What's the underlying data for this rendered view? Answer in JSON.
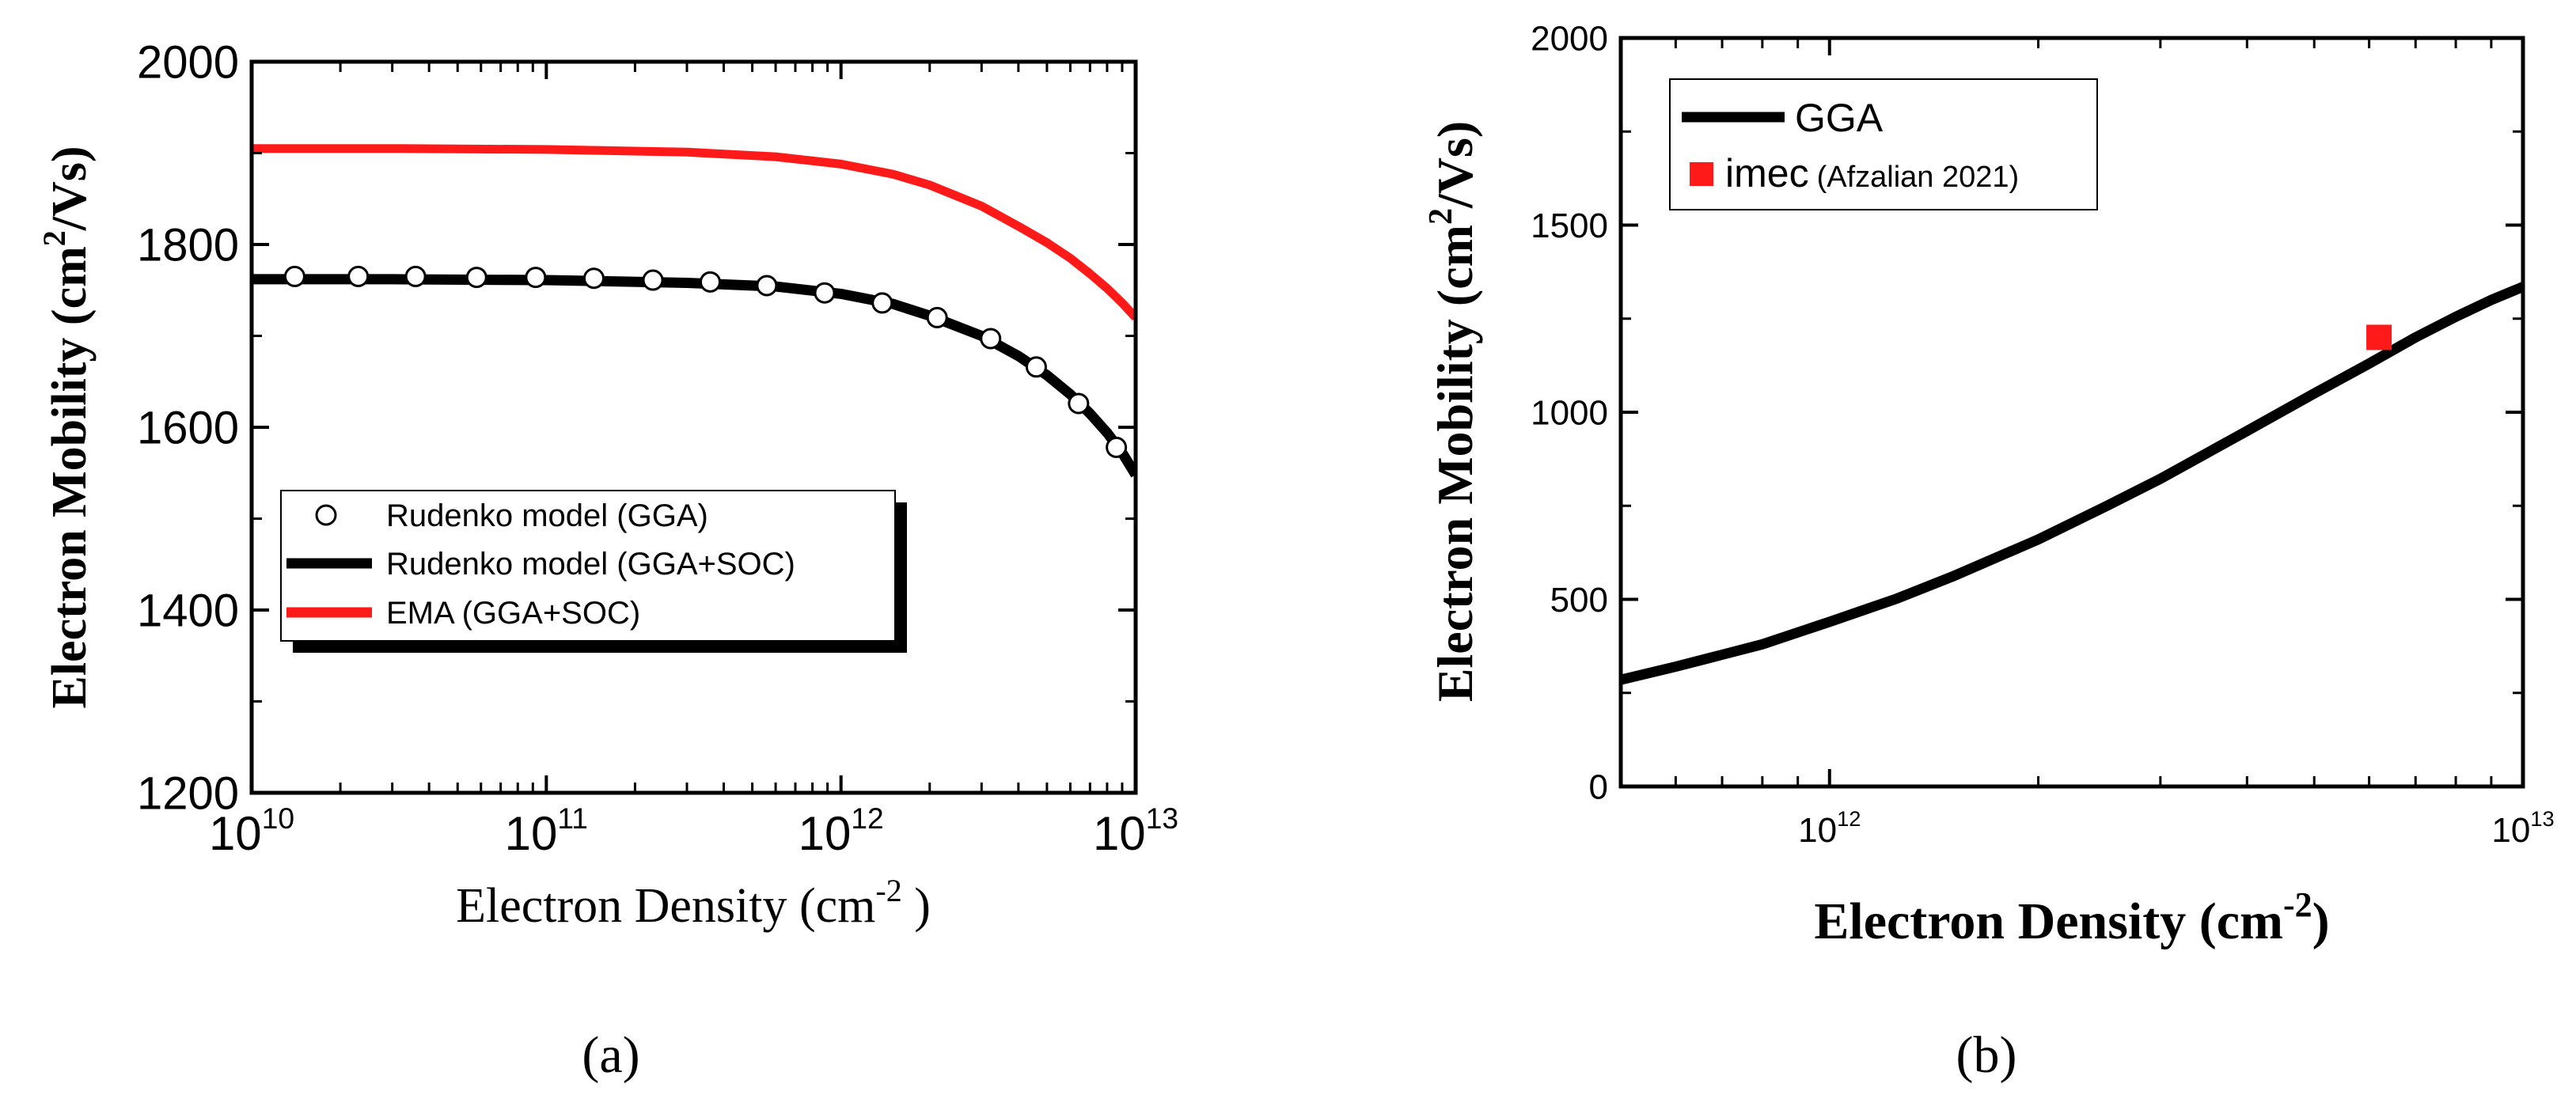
{
  "colors": {
    "black": "#000000",
    "red": "#ff1a1a",
    "marker_fill": "#ffffff"
  },
  "chart_data": [
    {
      "panel": "a",
      "panel_label": "(a)",
      "type": "line",
      "xscale": "log",
      "xlim": [
        10000000000.0,
        10000000000000.0
      ],
      "ylim": [
        1200,
        2000
      ],
      "xlabel": "Electron Density (cm",
      "xlabel_sup": "-2",
      "xlabel_tail": " )",
      "ylabel": "Electron Mobility (cm",
      "ylabel_sup": "2",
      "ylabel_tail": "/Vs)",
      "xticks": [
        {
          "value": 10000000000.0,
          "base": "10",
          "exp": "10"
        },
        {
          "value": 100000000000.0,
          "base": "10",
          "exp": "11"
        },
        {
          "value": 1000000000000.0,
          "base": "10",
          "exp": "12"
        },
        {
          "value": 10000000000000.0,
          "base": "10",
          "exp": "13"
        }
      ],
      "yticks": [
        {
          "value": 1200,
          "label": "1200"
        },
        {
          "value": 1400,
          "label": "1400"
        },
        {
          "value": 1600,
          "label": "1600"
        },
        {
          "value": 1800,
          "label": "1800"
        },
        {
          "value": 2000,
          "label": "2000"
        }
      ],
      "legend_position": "lower-left",
      "series": [
        {
          "name": "Rudenko model (GGA)",
          "style": "markers",
          "x": [
            14000000000.0,
            23000000000.0,
            36000000000.0,
            58000000000.0,
            92000000000.0,
            145000000000.0,
            230000000000.0,
            360000000000.0,
            560000000000.0,
            880000000000.0,
            1380000000000.0,
            2120000000000.0,
            3220000000000.0,
            4600000000000.0,
            6400000000000.0,
            8600000000000.0
          ],
          "y": [
            1765,
            1765,
            1765,
            1764,
            1764,
            1763,
            1761,
            1759,
            1755,
            1747,
            1736,
            1720,
            1697,
            1666,
            1626,
            1578
          ]
        },
        {
          "name": "Rudenko model (GGA+SOC)",
          "style": "line",
          "color": "#000000",
          "x": [
            10000000000.0,
            30000000000.0,
            100000000000.0,
            300000000000.0,
            600000000000.0,
            1000000000000.0,
            1500000000000.0,
            2000000000000.0,
            3000000000000.0,
            4000000000000.0,
            5000000000000.0,
            6000000000000.0,
            7000000000000.0,
            8000000000000.0,
            9000000000000.0,
            10000000000000.0
          ],
          "y": [
            1762,
            1762,
            1761,
            1758,
            1754,
            1746,
            1735,
            1722,
            1700,
            1678,
            1657,
            1636,
            1615,
            1594,
            1572,
            1548
          ]
        },
        {
          "name": "EMA (GGA+SOC)",
          "style": "line",
          "color": "#ff1a1a",
          "x": [
            10000000000.0,
            30000000000.0,
            100000000000.0,
            300000000000.0,
            600000000000.0,
            1000000000000.0,
            1500000000000.0,
            2000000000000.0,
            3000000000000.0,
            4000000000000.0,
            5000000000000.0,
            6000000000000.0,
            7000000000000.0,
            8000000000000.0,
            9000000000000.0,
            10000000000000.0
          ],
          "y": [
            1905,
            1905,
            1904,
            1901,
            1896,
            1888,
            1877,
            1865,
            1842,
            1820,
            1802,
            1785,
            1768,
            1752,
            1736,
            1720
          ]
        }
      ]
    },
    {
      "panel": "b",
      "panel_label": "(b)",
      "type": "line",
      "xscale": "log",
      "xlim": [
        500000000000.0,
        10000000000000.0
      ],
      "ylim": [
        0,
        2000
      ],
      "xlabel": "Electron Density (cm",
      "xlabel_sup": "-2",
      "xlabel_tail": ")",
      "ylabel": "Electron Mobility (cm",
      "ylabel_sup": "2",
      "ylabel_tail": "/Vs)",
      "xticks": [
        {
          "value": 1000000000000.0,
          "base": "10",
          "exp": "12"
        },
        {
          "value": 10000000000000.0,
          "base": "10",
          "exp": "13"
        }
      ],
      "yticks": [
        {
          "value": 0,
          "label": "0"
        },
        {
          "value": 500,
          "label": "500"
        },
        {
          "value": 1000,
          "label": "1000"
        },
        {
          "value": 1500,
          "label": "1500"
        },
        {
          "value": 2000,
          "label": "2000"
        }
      ],
      "legend_position": "top-left",
      "series": [
        {
          "name": "GGA",
          "style": "line",
          "color": "#000000",
          "x": [
            500000000000.0,
            600000000000.0,
            700000000000.0,
            800000000000.0,
            1000000000000.0,
            1250000000000.0,
            1500000000000.0,
            2000000000000.0,
            2500000000000.0,
            3000000000000.0,
            4000000000000.0,
            5000000000000.0,
            6000000000000.0,
            7000000000000.0,
            8000000000000.0,
            9000000000000.0,
            10000000000000.0
          ],
          "y": [
            285,
            320,
            352,
            380,
            440,
            502,
            560,
            660,
            748,
            822,
            950,
            1050,
            1130,
            1200,
            1255,
            1300,
            1335
          ]
        },
        {
          "name": "imec",
          "name_extra": "(Afzalian 2021)",
          "style": "square",
          "color": "#ff1a1a",
          "x": [
            6200000000000.0
          ],
          "y": [
            1200
          ]
        }
      ]
    }
  ]
}
